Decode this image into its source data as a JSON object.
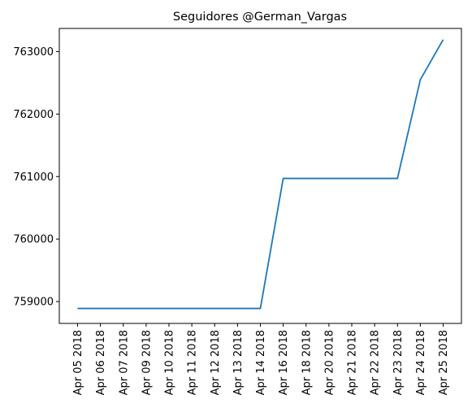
{
  "chart_data": {
    "type": "line",
    "title": "Seguidores @German_Vargas",
    "xlabel": "",
    "ylabel": "",
    "categories": [
      "Apr 05 2018",
      "Apr 06 2018",
      "Apr 07 2018",
      "Apr 09 2018",
      "Apr 10 2018",
      "Apr 11 2018",
      "Apr 12 2018",
      "Apr 13 2018",
      "Apr 14 2018",
      "Apr 16 2018",
      "Apr 18 2018",
      "Apr 20 2018",
      "Apr 21 2018",
      "Apr 22 2018",
      "Apr 23 2018",
      "Apr 24 2018",
      "Apr 25 2018"
    ],
    "series": [
      {
        "values": [
          758890,
          758890,
          758890,
          758890,
          758890,
          758890,
          758890,
          758890,
          758890,
          760970,
          760970,
          760970,
          760970,
          760970,
          760970,
          762550,
          763190
        ]
      }
    ],
    "yticks": [
      759000,
      760000,
      761000,
      762000,
      763000
    ],
    "ylim": [
      758650,
      763370
    ],
    "grid": false,
    "color": "#1f77b4"
  }
}
